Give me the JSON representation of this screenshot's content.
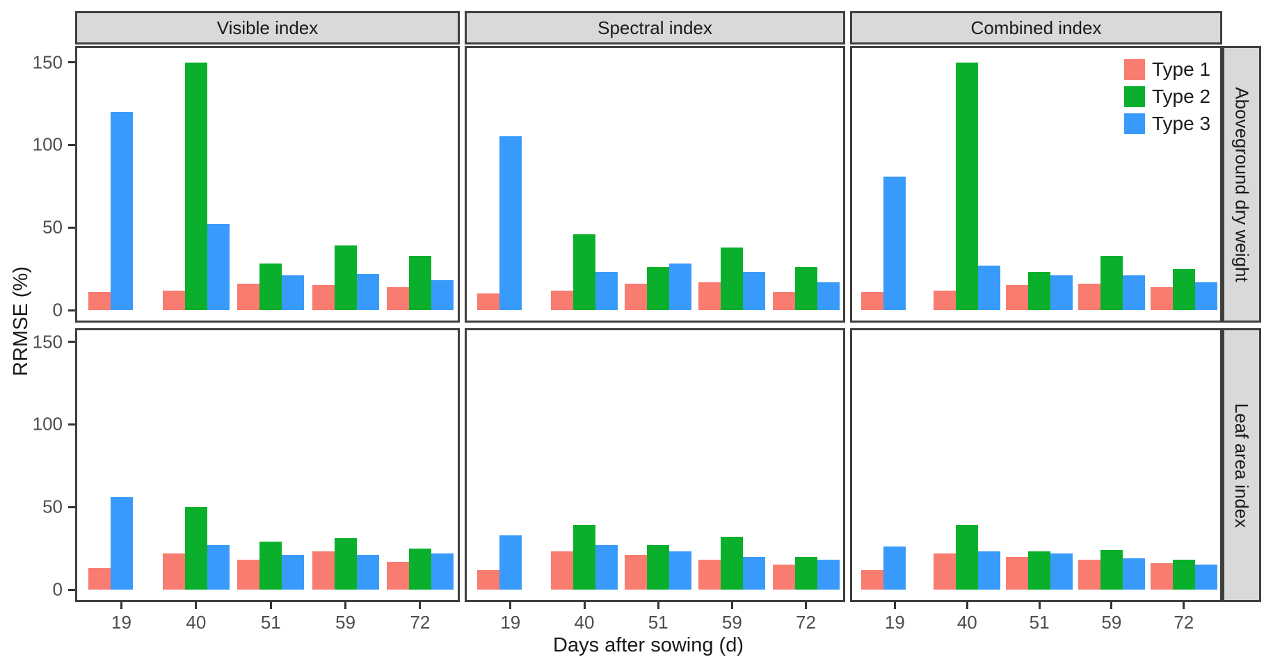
{
  "figure": {
    "y_axis_title": "RRMSE (%)",
    "x_axis_title": "Days after sowing (d)",
    "col_facets": [
      "Visible index",
      "Spectral index",
      "Combined index"
    ],
    "row_facets": [
      "Aboveground dry weight",
      "Leaf area index"
    ],
    "y_tick_labels": [
      "0",
      "50",
      "100",
      "150"
    ],
    "x_tick_labels": [
      "19",
      "40",
      "51",
      "59",
      "72"
    ],
    "legend": {
      "entries": [
        {
          "label": "Type 1",
          "color": "#F97C70"
        },
        {
          "label": "Type 2",
          "color": "#0AB02C"
        },
        {
          "label": "Type 3",
          "color": "#389BFC"
        }
      ]
    },
    "colors": {
      "panel_border": "#3F3F3F",
      "strip_fill": "#D9D9D9",
      "tick_label": "#4D4D4D",
      "axis_title": "#1A1A1A"
    }
  },
  "chart_data": {
    "type": "bar",
    "title": "",
    "xlabel": "Days after sowing (d)",
    "ylabel": "RRMSE (%)",
    "categories": [
      "19",
      "40",
      "51",
      "59",
      "72"
    ],
    "y_ticks": [
      0,
      50,
      100,
      150
    ],
    "ylim": [
      0,
      160
    ],
    "grid": false,
    "legend_position": "top-right-first-row-third-column",
    "series_names": [
      "Type 1",
      "Type 2",
      "Type 3"
    ],
    "facets": [
      {
        "row": "Aboveground dry weight",
        "col": "Visible index",
        "series": [
          {
            "name": "Type 1",
            "values": [
              11,
              12,
              16,
              15,
              14
            ]
          },
          {
            "name": "Type 2",
            "values": [
              null,
              150,
              28,
              39,
              33
            ]
          },
          {
            "name": "Type 3",
            "values": [
              120,
              52,
              21,
              22,
              18
            ]
          }
        ]
      },
      {
        "row": "Aboveground dry weight",
        "col": "Spectral index",
        "series": [
          {
            "name": "Type 1",
            "values": [
              10,
              12,
              16,
              17,
              11
            ]
          },
          {
            "name": "Type 2",
            "values": [
              null,
              46,
              26,
              38,
              26
            ]
          },
          {
            "name": "Type 3",
            "values": [
              105,
              23,
              28,
              23,
              17
            ]
          }
        ]
      },
      {
        "row": "Aboveground dry weight",
        "col": "Combined index",
        "series": [
          {
            "name": "Type 1",
            "values": [
              11,
              12,
              15,
              16,
              14
            ]
          },
          {
            "name": "Type 2",
            "values": [
              null,
              150,
              23,
              33,
              25
            ]
          },
          {
            "name": "Type 3",
            "values": [
              81,
              27,
              21,
              21,
              17
            ]
          }
        ]
      },
      {
        "row": "Leaf area index",
        "col": "Visible index",
        "series": [
          {
            "name": "Type 1",
            "values": [
              13,
              22,
              18,
              23,
              17
            ]
          },
          {
            "name": "Type 2",
            "values": [
              null,
              50,
              29,
              31,
              25
            ]
          },
          {
            "name": "Type 3",
            "values": [
              56,
              27,
              21,
              21,
              22
            ]
          }
        ]
      },
      {
        "row": "Leaf area index",
        "col": "Spectral index",
        "series": [
          {
            "name": "Type 1",
            "values": [
              12,
              23,
              21,
              18,
              15
            ]
          },
          {
            "name": "Type 2",
            "values": [
              null,
              39,
              27,
              32,
              20
            ]
          },
          {
            "name": "Type 3",
            "values": [
              33,
              27,
              23,
              20,
              18
            ]
          }
        ]
      },
      {
        "row": "Leaf area index",
        "col": "Combined index",
        "series": [
          {
            "name": "Type 1",
            "values": [
              12,
              22,
              20,
              18,
              16
            ]
          },
          {
            "name": "Type 2",
            "values": [
              null,
              39,
              23,
              24,
              18
            ]
          },
          {
            "name": "Type 3",
            "values": [
              26,
              23,
              22,
              19,
              15
            ]
          }
        ]
      }
    ]
  }
}
